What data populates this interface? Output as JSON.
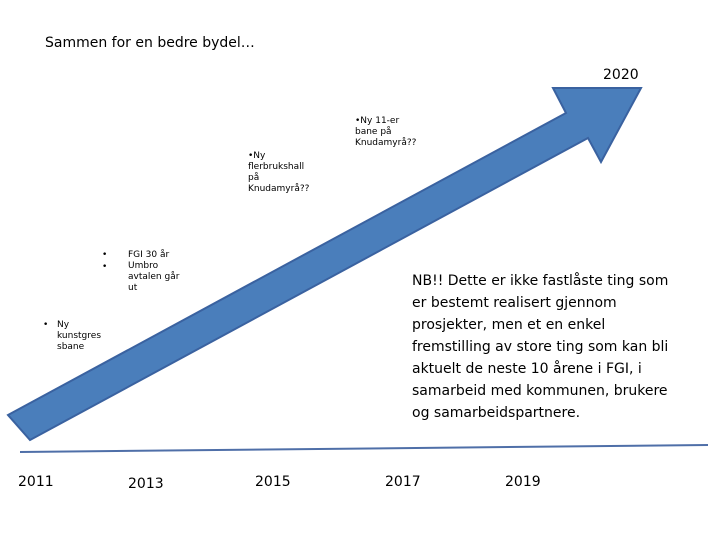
{
  "title": "Sammen for en bedre bydel…",
  "end_year": "2020",
  "timeline_years": [
    "2011",
    "2013",
    "2015",
    "2017",
    "2019"
  ],
  "notes": {
    "flerbrukshall": [
      "•Ny",
      "flerbrukshall",
      "på",
      "Knudamyrå??"
    ],
    "elleverbane": [
      "•Ny 11-er",
      "bane på",
      "Knudamyrå??"
    ],
    "fgi": {
      "bullet": "•",
      "lines": [
        "FGI 30 år",
        "Umbro",
        "avtalen går",
        "ut"
      ]
    },
    "kunstgress": {
      "bullet": "•",
      "lines": [
        "Ny",
        "kunstgres",
        "sbane"
      ]
    }
  },
  "disclaimer": [
    "NB!! Dette er ikke fastlåste ting som",
    "er bestemt realisert gjennom",
    "prosjekter, men et en enkel",
    "fremstilling av store ting som kan bli",
    "aktuelt de neste 10 årene i FGI, i",
    "samarbeid med kommunen, brukere",
    "og samarbeidspartnere."
  ],
  "colors": {
    "arrow_fill": "#4a7ebb",
    "arrow_stroke": "#3a62a0",
    "baseline": "#4f6fa8"
  }
}
